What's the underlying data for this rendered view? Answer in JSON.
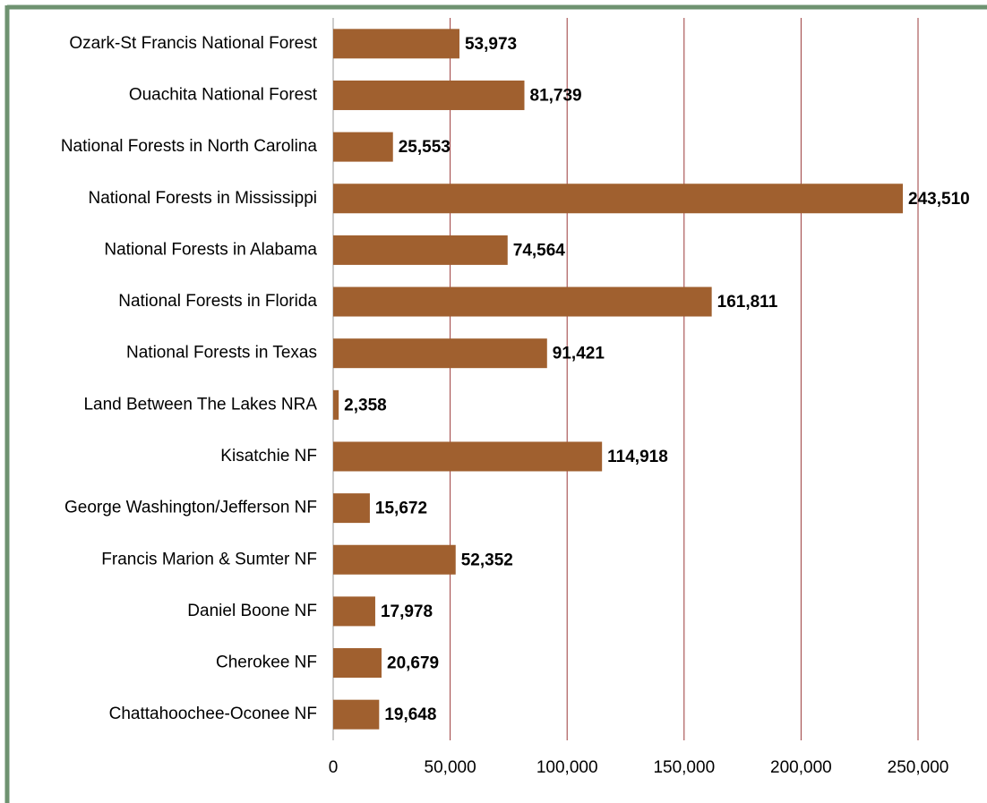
{
  "chart_data": {
    "type": "bar",
    "orientation": "horizontal",
    "categories": [
      "Ozark-St Francis National Forest",
      "Ouachita National Forest",
      "National Forests in North Carolina",
      "National Forests in Mississippi",
      "National Forests in Alabama",
      "National Forests in Florida",
      "National Forests in Texas",
      "Land Between The Lakes NRA",
      "Kisatchie NF",
      "George Washington/Jefferson NF",
      "Francis Marion & Sumter NF",
      "Daniel Boone NF",
      "Cherokee NF",
      "Chattahoochee-Oconee NF"
    ],
    "values": [
      53973,
      81739,
      25553,
      243510,
      74564,
      161811,
      91421,
      2358,
      114918,
      15672,
      52352,
      17978,
      20679,
      19648
    ],
    "value_labels": [
      "53,973",
      "81,739",
      "25,553",
      "243,510",
      "74,564",
      "161,811",
      "91,421",
      "2,358",
      "114,918",
      "15,672",
      "52,352",
      "17,978",
      "20,679",
      "19,648"
    ],
    "color": "#a0602f",
    "xlim": [
      0,
      250000
    ],
    "xticks": [
      0,
      {
        "value": 50000,
        "label": "50,000"
      },
      {
        "value": 100000,
        "label": "100,000"
      },
      {
        "value": 150000,
        "label": "150,000"
      },
      {
        "value": 200000,
        "label": "200,000"
      },
      {
        "value": 250000,
        "label": "250,000"
      }
    ],
    "grid": true
  }
}
